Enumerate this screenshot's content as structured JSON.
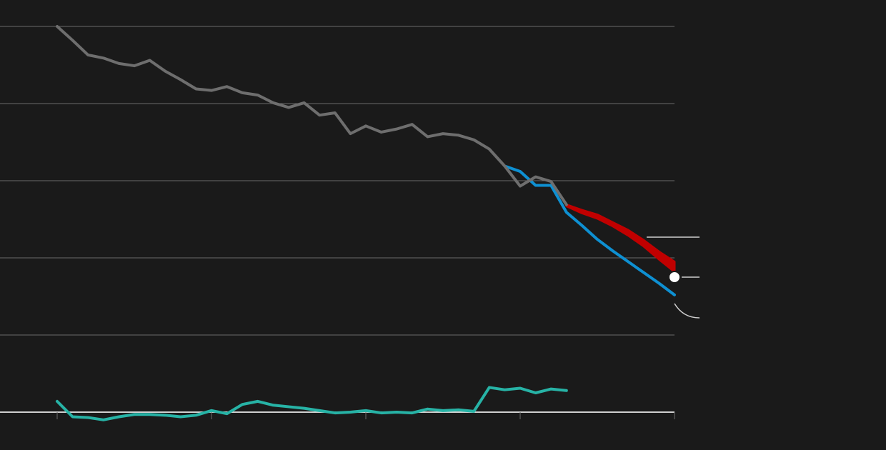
{
  "chart_data": {
    "type": "line",
    "xlim": [
      0,
      40
    ],
    "xticks": [
      0,
      10,
      20,
      30,
      40
    ],
    "ylim": [
      0,
      5
    ],
    "yticks": [
      0,
      1,
      2,
      3,
      4,
      5
    ],
    "grid": true,
    "series": [
      {
        "color": "#6e6e6e",
        "x": [
          0,
          1,
          2,
          3,
          4,
          5,
          6,
          7,
          8,
          9,
          10,
          11,
          12,
          13,
          14,
          15,
          16,
          17,
          18,
          19,
          20,
          21,
          22,
          23,
          24,
          25,
          26,
          27,
          28,
          29,
          30,
          31,
          32,
          33
        ],
        "values": [
          5.0,
          4.82,
          4.63,
          4.59,
          4.52,
          4.49,
          4.56,
          4.42,
          4.31,
          4.19,
          4.17,
          4.22,
          4.14,
          4.11,
          4.01,
          3.95,
          4.01,
          3.85,
          3.88,
          3.61,
          3.71,
          3.63,
          3.67,
          3.73,
          3.57,
          3.61,
          3.59,
          3.53,
          3.41,
          3.19,
          2.93,
          3.05,
          2.99,
          2.69
        ]
      },
      {
        "color": "#27b3a6",
        "x": [
          0,
          1,
          2,
          3,
          4,
          5,
          6,
          7,
          8,
          9,
          10,
          11,
          12,
          13,
          14,
          15,
          16,
          17,
          18,
          19,
          20,
          21,
          22,
          23,
          24,
          25,
          26,
          27,
          28,
          29,
          30,
          31,
          32,
          33
        ],
        "values": [
          0.14,
          -0.06,
          -0.07,
          -0.1,
          -0.06,
          -0.03,
          -0.03,
          -0.04,
          -0.06,
          -0.04,
          0.02,
          -0.02,
          0.1,
          0.14,
          0.09,
          0.07,
          0.05,
          0.02,
          -0.01,
          0.0,
          0.02,
          -0.01,
          0.0,
          -0.01,
          0.04,
          0.02,
          0.03,
          0.01,
          0.32,
          0.29,
          0.31,
          0.25,
          0.3,
          0.28
        ]
      },
      {
        "color": "#0e90d2",
        "x": [
          29,
          30,
          31,
          32,
          33,
          34,
          35,
          36,
          37,
          38,
          39,
          40
        ],
        "values": [
          3.19,
          3.12,
          2.94,
          2.94,
          2.59,
          2.42,
          2.24,
          2.09,
          1.95,
          1.81,
          1.67,
          1.52
        ]
      }
    ],
    "band": {
      "color": "#c00000",
      "x": [
        33,
        34,
        35,
        36,
        37,
        38,
        39,
        40
      ],
      "upper": [
        2.69,
        2.62,
        2.56,
        2.46,
        2.36,
        2.23,
        2.08,
        1.95
      ],
      "lower": [
        2.67,
        2.58,
        2.51,
        2.41,
        2.29,
        2.15,
        1.98,
        1.82
      ]
    },
    "marker": {
      "x": 40,
      "y": 1.75,
      "color": "#ffffff"
    }
  }
}
